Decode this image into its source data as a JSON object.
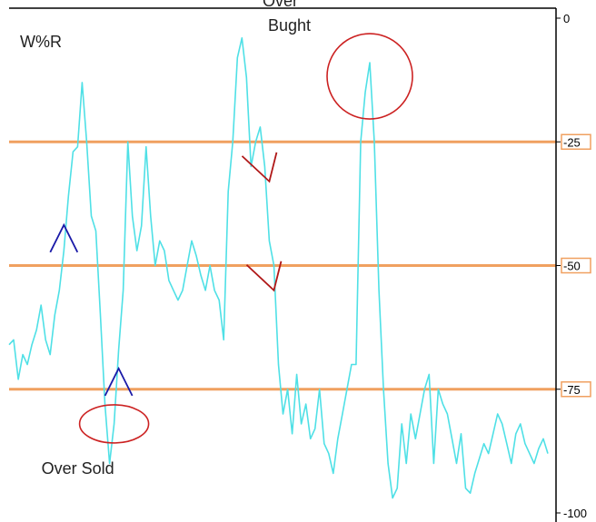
{
  "chart_data": {
    "type": "line",
    "title": "W%R",
    "xlabel": "",
    "ylabel": "",
    "ylim": [
      -100,
      0
    ],
    "grid": false,
    "legend": "none",
    "y_ticks": [
      {
        "value": 0,
        "label": "0"
      },
      {
        "value": -25,
        "label": "-25"
      },
      {
        "value": -50,
        "label": "-50"
      },
      {
        "value": -75,
        "label": "-75"
      },
      {
        "value": -100,
        "label": "-100"
      }
    ],
    "reference_levels": [
      -25,
      -50,
      -75
    ],
    "x": [
      0,
      1,
      2,
      3,
      4,
      5,
      6,
      7,
      8,
      9,
      10,
      11,
      12,
      13,
      14,
      15,
      16,
      17,
      18,
      19,
      20,
      21,
      22,
      23,
      24,
      25,
      26,
      27,
      28,
      29,
      30,
      31,
      32,
      33,
      34,
      35,
      36,
      37,
      38,
      39,
      40,
      41,
      42,
      43,
      44,
      45,
      46,
      47,
      48,
      49,
      50,
      51,
      52,
      53,
      54,
      55,
      56,
      57,
      58,
      59,
      60,
      61,
      62,
      63,
      64,
      65,
      66,
      67,
      68,
      69,
      70,
      71,
      72,
      73,
      74,
      75,
      76,
      77,
      78,
      79,
      80,
      81,
      82,
      83,
      84,
      85,
      86,
      87,
      88,
      89,
      90,
      91,
      92,
      93,
      94,
      95,
      96,
      97,
      98,
      99,
      100,
      101,
      102,
      103,
      104,
      105,
      106,
      107,
      108,
      109,
      110,
      111,
      112,
      113,
      114,
      115,
      116,
      117,
      118
    ],
    "values": [
      -66,
      -65,
      -73,
      -68,
      -70,
      -66,
      -63,
      -58,
      -65,
      -68,
      -60,
      -55,
      -47,
      -36,
      -27,
      -26,
      -13,
      -25,
      -40,
      -43,
      -60,
      -78,
      -90,
      -82,
      -67,
      -55,
      -25,
      -40,
      -47,
      -42,
      -26,
      -40,
      -50,
      -45,
      -47,
      -53,
      -55,
      -57,
      -55,
      -50,
      -45,
      -48,
      -52,
      -55,
      -50,
      -55,
      -57,
      -65,
      -35,
      -25,
      -8,
      -4,
      -12,
      -30,
      -25,
      -22,
      -30,
      -45,
      -50,
      -70,
      -80,
      -75,
      -84,
      -72,
      -82,
      -78,
      -85,
      -83,
      -75,
      -86,
      -88,
      -92,
      -85,
      -80,
      -75,
      -70,
      -70,
      -25,
      -15,
      -9,
      -25,
      -55,
      -75,
      -90,
      -97,
      -95,
      -82,
      -90,
      -80,
      -85,
      -80,
      -75,
      -72,
      -90,
      -75,
      -78,
      -80,
      -85,
      -90,
      -84,
      -95,
      -96,
      -92,
      -89,
      -86,
      -88,
      -84,
      -80,
      -82,
      -86,
      -90,
      -84,
      -82,
      -86,
      -88,
      -90,
      -87,
      -85,
      -88
    ],
    "series_color": "#4fe0e6",
    "level_color": "#f0a060",
    "annotations": [
      {
        "text": "Over Sold",
        "target_x": 23,
        "target_y": -82,
        "shape": "ellipse",
        "color": "#cc2222"
      },
      {
        "text": "Over\nBught",
        "target_x": 79,
        "target_y": -9,
        "shape": "ellipse",
        "color": "#cc2222"
      },
      {
        "text": "",
        "target_x": 12,
        "target_y": -44,
        "shape": "up-arrowhead",
        "color": "#1a1aa8"
      },
      {
        "text": "",
        "target_x": 24,
        "target_y": -73,
        "shape": "up-arrowhead",
        "color": "#1a1aa8"
      },
      {
        "text": "",
        "target_x": 57,
        "target_y": -33,
        "shape": "down-arrowhead",
        "color": "#b01818"
      },
      {
        "text": "",
        "target_x": 58,
        "target_y": -55,
        "shape": "down-arrowhead",
        "color": "#b01818"
      }
    ]
  }
}
